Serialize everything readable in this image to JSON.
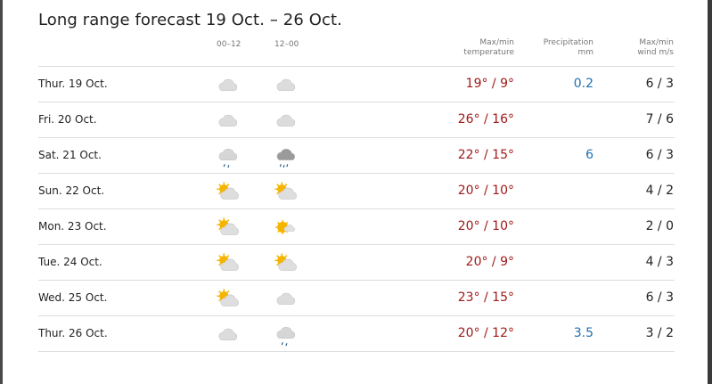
{
  "title": "Long range forecast 19 Oct. – 26 Oct.",
  "headers": {
    "period1": "00–12",
    "period2": "12–00",
    "temp_line1": "Max/min",
    "temp_line2": "temperature",
    "precip_line1": "Precipitation",
    "precip_line2": "mm",
    "wind_line1": "Max/min",
    "wind_line2": "wind m/s"
  },
  "colors": {
    "temperature": "#a11a1a",
    "precipitation": "#1f6fb0"
  },
  "rows": [
    {
      "day": "Thur. 19 Oct.",
      "icon1": "cloudy",
      "icon2": "cloudy",
      "temp": "19° / 9°",
      "precip": "0.2",
      "wind": "6 / 3"
    },
    {
      "day": "Fri. 20 Oct.",
      "icon1": "cloudy",
      "icon2": "cloudy",
      "temp": "26° / 16°",
      "precip": "",
      "wind": "7 / 6"
    },
    {
      "day": "Sat. 21 Oct.",
      "icon1": "light-rain",
      "icon2": "rain",
      "temp": "22° / 15°",
      "precip": "6",
      "wind": "6 / 3"
    },
    {
      "day": "Sun. 22 Oct.",
      "icon1": "partly-cloudy",
      "icon2": "partly-cloudy",
      "temp": "20° / 10°",
      "precip": "",
      "wind": "4 / 2"
    },
    {
      "day": "Mon. 23 Oct.",
      "icon1": "partly-cloudy",
      "icon2": "fair",
      "temp": "20° / 10°",
      "precip": "",
      "wind": "2 / 0"
    },
    {
      "day": "Tue. 24 Oct.",
      "icon1": "partly-cloudy",
      "icon2": "partly-cloudy",
      "temp": "20° / 9°",
      "precip": "",
      "wind": "4 / 3"
    },
    {
      "day": "Wed. 25 Oct.",
      "icon1": "partly-cloudy",
      "icon2": "cloudy",
      "temp": "23° / 15°",
      "precip": "",
      "wind": "6 / 3"
    },
    {
      "day": "Thur. 26 Oct.",
      "icon1": "cloudy",
      "icon2": "light-rain",
      "temp": "20° / 12°",
      "precip": "3.5",
      "wind": "3 / 2"
    }
  ]
}
